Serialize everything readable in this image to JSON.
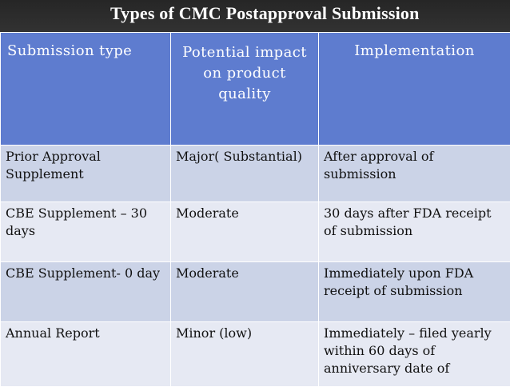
{
  "title": "Types of CMC Postapproval Submission",
  "headers": [
    "Submission type",
    "Potential impact on product quality",
    "Implementation"
  ],
  "rows": [
    [
      "Prior Approval Supplement",
      "Major( Substantial)",
      "After approval of submission"
    ],
    [
      "CBE Supplement – 30 days",
      "Moderate",
      "30 days after FDA receipt of submission"
    ],
    [
      "CBE Supplement- 0 day",
      "Moderate",
      "Immediately upon FDA receipt of submission"
    ],
    [
      "Annual Report",
      "Minor (low)",
      "Immediately – filed yearly within 60 days of anniversary date of"
    ]
  ]
}
